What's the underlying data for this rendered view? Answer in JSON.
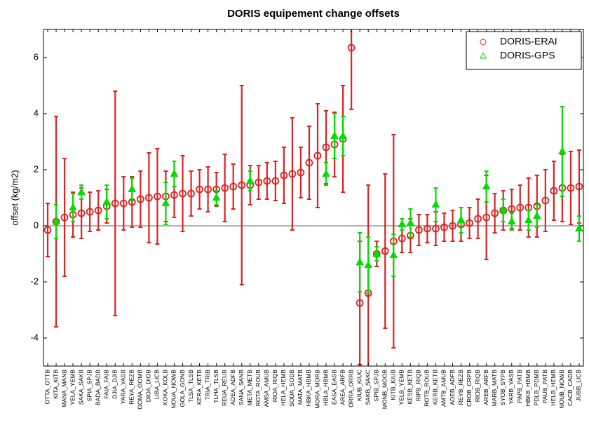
{
  "chart_data": {
    "type": "errorbar",
    "title": "DORIS equipement change offsets",
    "ylabel": "offset (kg/m2)",
    "categories": [
      "OTTA_OTTB",
      "KITA_KITB",
      "MANA_MANB",
      "YELA_YEMB",
      "SAKA_SAKB",
      "SPIA_SPJB",
      "BADA_BADB",
      "FAIA_FAIB",
      "DJIA_DJIB",
      "YARA_YASB",
      "REYA_REZB",
      "GOMA_GOMB",
      "DIOA_DIOB",
      "LIBA_LICB",
      "KOKA_KOLB",
      "NOUA_NOWB",
      "GOLA_GONB",
      "TLSA_TLSB",
      "KERA_KETB",
      "TRIA_TRIB",
      "TLHA_TLSB",
      "REUA_REUB",
      "ADEA_ADFB",
      "SANA_SANB",
      "META_METB",
      "ROTA_ROUB",
      "AMSA_AMUB",
      "RIOA_RIQB",
      "HELA_HEMB",
      "SODA_SODB",
      "MATA_MATB",
      "HBKA_HBMB",
      "MORA_MORB",
      "HBLA_HBMB",
      "EASA_EASB",
      "AREA_ARFB",
      "ORRA_ORRB",
      "KIUB_KIUC",
      "SAKB_SAKC",
      "SPIB_SPJB",
      "MONB_MOOB",
      "KITB_KIUB",
      "YELB_YEMB",
      "KESB_KETB",
      "RIPB_RIQB",
      "ROTB_ROUB",
      "KERB_KETB",
      "AMTB_AMUB",
      "ADEB_ADFB",
      "REYB_REZB",
      "CROB_CRPB",
      "RIOB_RIQB",
      "AREB_ARFB",
      "MARB_MATB",
      "SYOB_SYPB",
      "YARB_YASB",
      "PAPB_PATB",
      "HBKB_HBMB",
      "PDLB_PDMB",
      "PAUB_PATB",
      "HELB_HEMB",
      "NOUB_NOWB",
      "CACB_CADB",
      "JUBB_LICB"
    ],
    "series": [
      {
        "name": "DORIS-ERAI",
        "color": "#dd2222",
        "marker": "circle",
        "values": [
          -0.15,
          0.15,
          0.3,
          0.4,
          0.45,
          0.5,
          0.55,
          0.7,
          0.8,
          0.8,
          0.85,
          0.95,
          1.0,
          1.05,
          1.05,
          1.1,
          1.15,
          1.15,
          1.3,
          1.3,
          1.3,
          1.35,
          1.4,
          1.45,
          1.45,
          1.55,
          1.6,
          1.6,
          1.8,
          1.85,
          1.9,
          2.25,
          2.5,
          2.8,
          2.9,
          3.1,
          6.35,
          -2.75,
          -2.4,
          -1.0,
          -0.9,
          -0.55,
          -0.45,
          -0.35,
          -0.15,
          -0.1,
          -0.1,
          -0.05,
          0.0,
          0.05,
          0.1,
          0.25,
          0.3,
          0.45,
          0.55,
          0.6,
          0.65,
          0.65,
          0.7,
          0.9,
          1.25,
          1.35,
          1.35,
          1.4
        ],
        "errors": [
          0.95,
          3.75,
          2.1,
          0.8,
          0.9,
          0.7,
          0.7,
          0.6,
          4.0,
          0.95,
          0.9,
          1.0,
          1.6,
          1.7,
          0.9,
          0.8,
          1.35,
          0.8,
          0.7,
          0.8,
          0.6,
          1.2,
          0.8,
          3.55,
          0.7,
          0.6,
          0.65,
          0.7,
          1.0,
          2.0,
          0.9,
          1.3,
          1.85,
          1.3,
          1.15,
          1.9,
          2.2,
          2.2,
          3.85,
          0.45,
          2.75,
          3.8,
          0.5,
          0.6,
          0.55,
          0.5,
          0.6,
          0.5,
          0.55,
          0.6,
          0.55,
          0.7,
          1.5,
          0.7,
          0.7,
          0.7,
          0.8,
          1.05,
          1.1,
          1.1,
          1.05,
          1.2,
          1.3,
          1.3
        ]
      },
      {
        "name": "DORIS-GPS",
        "color": "#00dd00",
        "marker": "triangle",
        "values": [
          null,
          0.15,
          null,
          0.65,
          1.2,
          null,
          null,
          0.85,
          null,
          null,
          1.3,
          null,
          null,
          null,
          0.8,
          1.85,
          null,
          null,
          null,
          null,
          1.0,
          null,
          null,
          null,
          1.6,
          null,
          null,
          null,
          null,
          null,
          null,
          null,
          null,
          1.85,
          3.2,
          3.2,
          null,
          -1.3,
          -1.4,
          -1.0,
          null,
          -1.05,
          0.05,
          0.1,
          null,
          null,
          0.75,
          null,
          null,
          0.2,
          null,
          null,
          1.4,
          null,
          0.55,
          0.15,
          null,
          0.2,
          0.35,
          null,
          null,
          2.65,
          null,
          -0.1
        ],
        "errors": [
          null,
          0.6,
          null,
          0.5,
          0.25,
          null,
          null,
          0.6,
          null,
          null,
          0.4,
          null,
          null,
          null,
          0.75,
          0.45,
          null,
          null,
          null,
          null,
          0.25,
          null,
          null,
          null,
          0.35,
          null,
          null,
          null,
          null,
          null,
          null,
          null,
          null,
          0.4,
          0.8,
          0.7,
          null,
          1.05,
          1.0,
          0.25,
          null,
          0.75,
          0.2,
          0.5,
          null,
          null,
          0.6,
          null,
          null,
          0.45,
          null,
          null,
          0.55,
          null,
          0.4,
          0.3,
          null,
          0.35,
          0.4,
          null,
          null,
          1.6,
          null,
          0.45
        ]
      }
    ],
    "ylim": [
      -5,
      7
    ],
    "yticks": [
      -4,
      -2,
      0,
      2,
      4,
      6
    ],
    "zero_line": true,
    "legend": "top-right"
  }
}
